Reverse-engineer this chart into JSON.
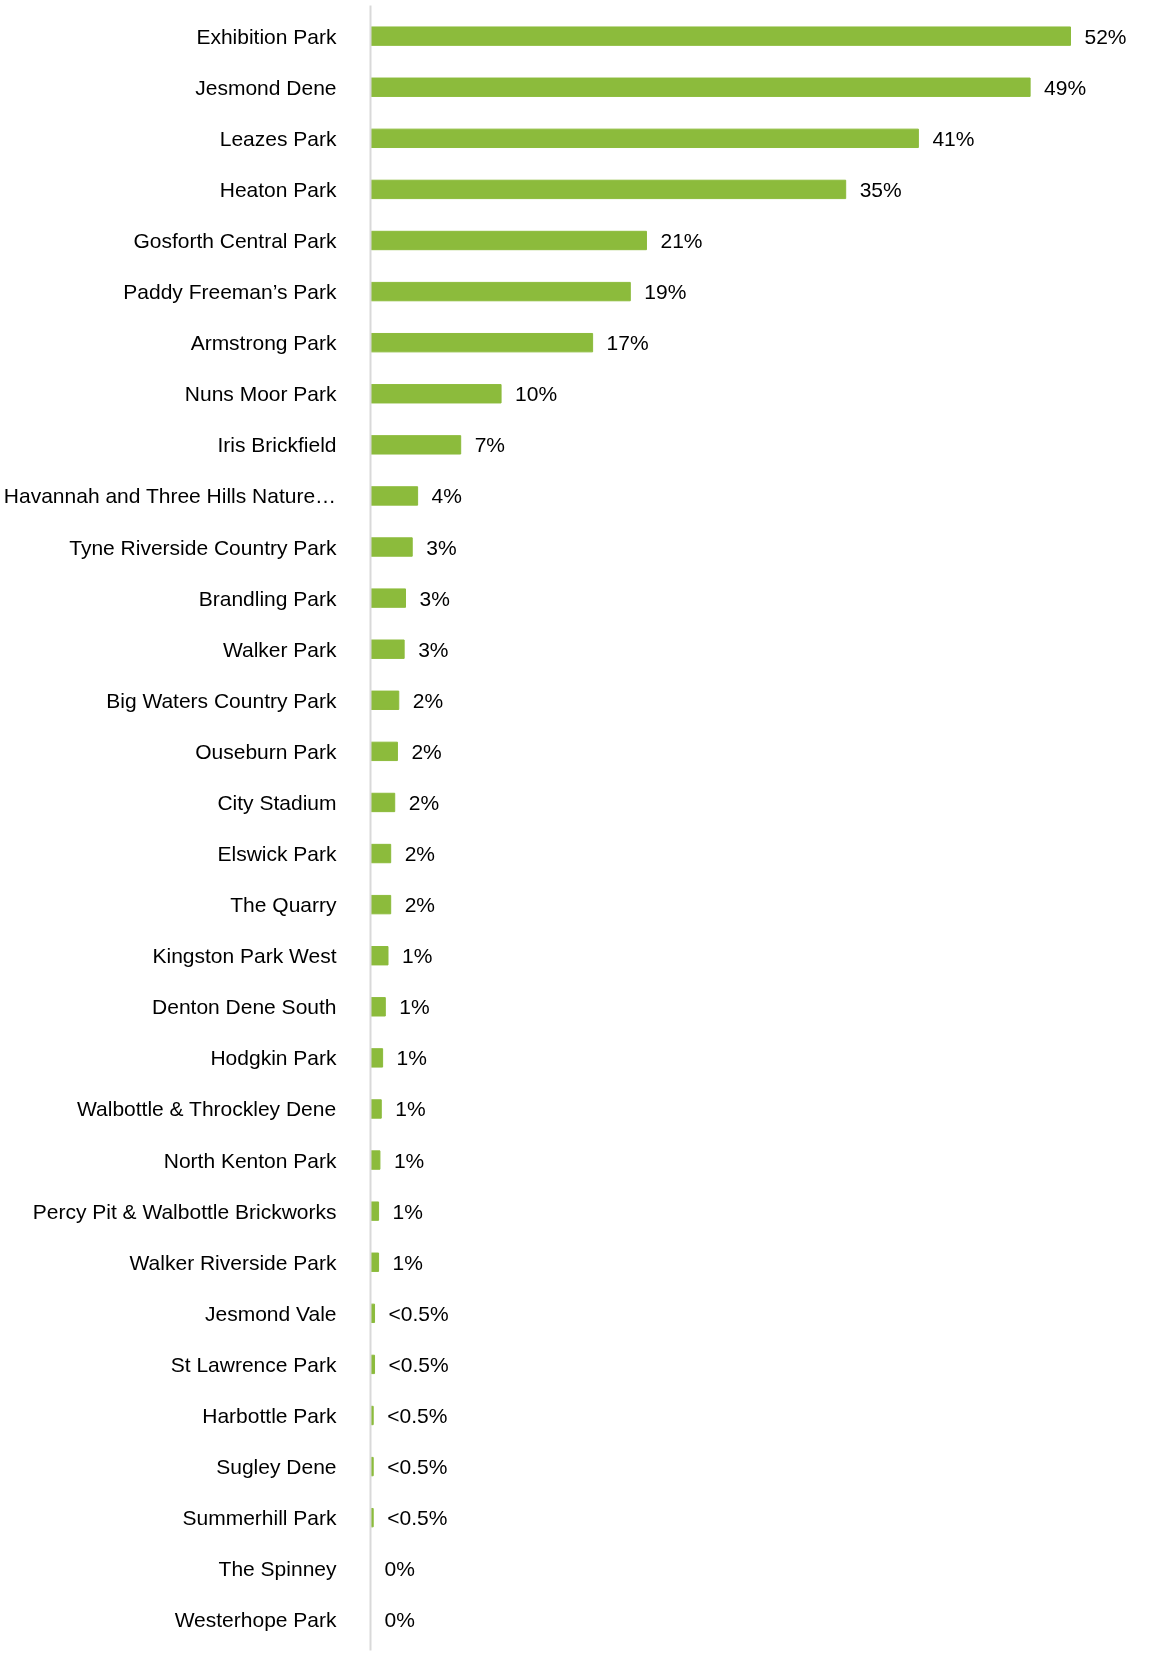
{
  "chart_data": {
    "type": "bar",
    "orientation": "horizontal",
    "color": "#8cbb3c",
    "categories": [
      "Exhibition Park",
      "Jesmond Dene",
      "Leazes Park",
      "Heaton Park",
      "Gosforth Central Park",
      "Paddy Freeman’s Park",
      "Armstrong Park",
      "Nuns Moor Park",
      "Iris Brickfield",
      "Havannah and Three Hills Nature…",
      "Tyne Riverside Country Park",
      "Brandling Park",
      "Walker Park",
      "Big Waters Country Park",
      "Ouseburn Park",
      "City Stadium",
      "Elswick Park",
      "The Quarry",
      "Kingston Park West",
      "Denton Dene South",
      "Hodgkin Park",
      "Walbottle & Throckley Dene",
      "North Kenton Park",
      "Percy Pit & Walbottle Brickworks",
      "Walker Riverside Park",
      "Jesmond Vale",
      "St Lawrence Park",
      "Harbottle Park",
      "Sugley Dene",
      "Summerhill Park",
      "The Spinney",
      "Westerhope Park"
    ],
    "values": [
      52,
      49,
      40.7,
      35.3,
      20.5,
      19.3,
      16.5,
      9.7,
      6.7,
      3.5,
      3.1,
      2.6,
      2.5,
      2.1,
      2.0,
      1.8,
      1.5,
      1.5,
      1.3,
      1.1,
      0.9,
      0.8,
      0.7,
      0.6,
      0.6,
      0.3,
      0.3,
      0.2,
      0.2,
      0.2,
      0,
      0
    ],
    "value_labels": [
      "52%",
      "49%",
      "41%",
      "35%",
      "21%",
      "19%",
      "17%",
      "10%",
      "7%",
      "4%",
      "3%",
      "3%",
      "3%",
      "2%",
      "2%",
      "2%",
      "2%",
      "2%",
      "1%",
      "1%",
      "1%",
      "1%",
      "1%",
      "1%",
      "1%",
      "<0.5%",
      "<0.5%",
      "<0.5%",
      "<0.5%",
      "<0.5%",
      "0%",
      "0%"
    ]
  }
}
